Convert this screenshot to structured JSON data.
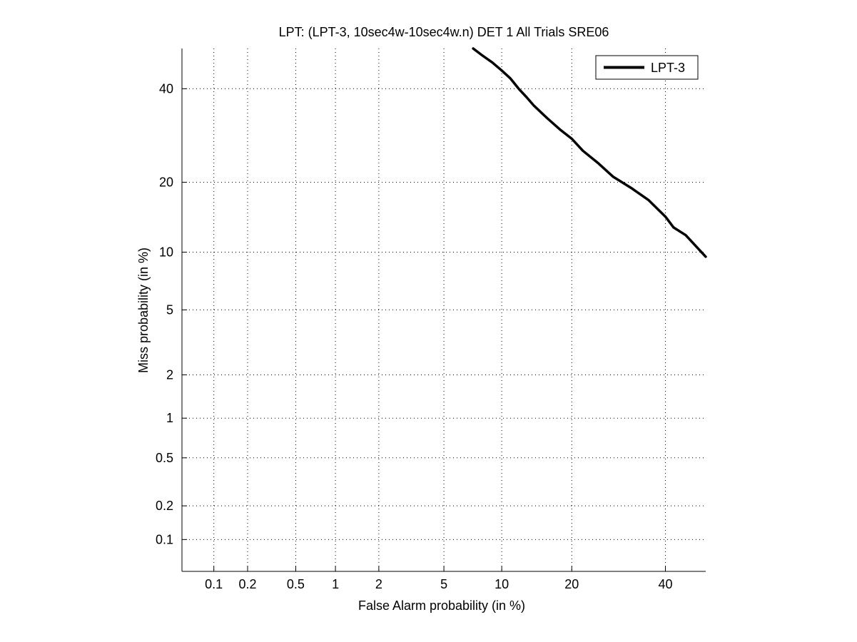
{
  "chart_data": {
    "type": "line",
    "title": "LPT: (LPT-3, 10sec4w-10sec4w.n) DET 1 All Trials SRE06",
    "xlabel": "False Alarm probability (in %)",
    "ylabel": "Miss probability (in %)",
    "x_scale": "probit",
    "y_scale": "probit",
    "xlim": [
      0.05,
      50
    ],
    "ylim": [
      0.05,
      50
    ],
    "x_ticks": [
      "0.1",
      "0.2",
      "0.5",
      "1",
      "2",
      "5",
      "10",
      "20",
      "40"
    ],
    "y_ticks": [
      "0.1",
      "0.2",
      "0.5",
      "1",
      "2",
      "5",
      "10",
      "20",
      "40"
    ],
    "grid": true,
    "legend_position": "top-right",
    "series": [
      {
        "name": "LPT-3",
        "color": "#000000",
        "x": [
          7.2,
          8,
          9,
          10,
          11,
          12,
          13,
          14,
          16,
          18,
          20,
          22,
          25,
          28,
          32,
          36,
          40,
          42,
          45,
          50
        ],
        "y": [
          50,
          48.3,
          46.5,
          44.5,
          42.5,
          40,
          38,
          36,
          33,
          30.5,
          28.5,
          26,
          23.5,
          21,
          19,
          17,
          14.5,
          13,
          12,
          9.5
        ]
      }
    ]
  }
}
